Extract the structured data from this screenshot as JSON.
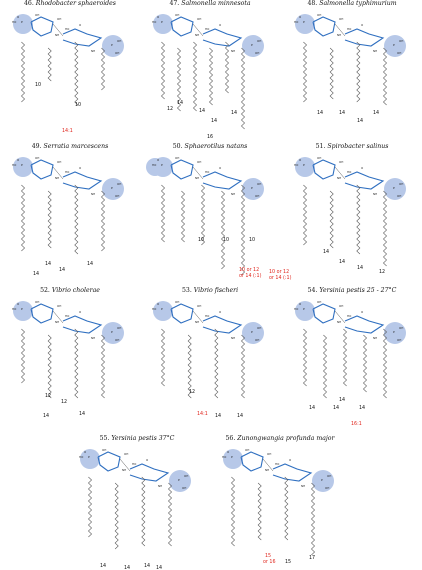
{
  "colors": {
    "circle": "#b7c8e8",
    "sugar": "#2f6fc0",
    "chain": "#555555",
    "red": "#e0261d"
  },
  "panels": [
    {
      "number": "46.",
      "species": "Rhodobacter sphaeroides",
      "labels": [
        {
          "text": "10",
          "red": false
        },
        {
          "text": "10",
          "red": false
        },
        {
          "text": "14:1",
          "red": true
        }
      ]
    },
    {
      "number": "47.",
      "species": "Salmonella minnesota",
      "labels": [
        {
          "text": "12",
          "red": false
        },
        {
          "text": "14",
          "red": false
        },
        {
          "text": "14",
          "red": false
        },
        {
          "text": "14",
          "red": false
        },
        {
          "text": "14",
          "red": false
        },
        {
          "text": "16",
          "red": false
        }
      ]
    },
    {
      "number": "48.",
      "species": "Salmonella typhimurium",
      "labels": [
        {
          "text": "14",
          "red": false
        },
        {
          "text": "14",
          "red": false
        },
        {
          "text": "14",
          "red": false
        },
        {
          "text": "14",
          "red": false
        }
      ]
    },
    {
      "number": "49.",
      "species": "Serratia marcescens",
      "labels": [
        {
          "text": "14",
          "red": false
        },
        {
          "text": "14",
          "red": false
        },
        {
          "text": "14",
          "red": false
        },
        {
          "text": "14",
          "red": false
        }
      ]
    },
    {
      "number": "50.",
      "species": "Sphaerotilus natans",
      "labels": [
        {
          "text": "10",
          "red": false
        },
        {
          "text": "10",
          "red": false
        },
        {
          "text": "10",
          "red": false
        },
        {
          "text": "10 or 12",
          "red": true
        },
        {
          "text": "or 14 (:1)",
          "red": true
        },
        {
          "text": "10 or 12",
          "red": true
        },
        {
          "text": "or 14 (:1)",
          "red": true
        }
      ]
    },
    {
      "number": "51.",
      "species": "Spirobacter salinus",
      "labels": [
        {
          "text": "14",
          "red": false
        },
        {
          "text": "14",
          "red": false
        },
        {
          "text": "14",
          "red": false
        },
        {
          "text": "12",
          "red": false
        }
      ]
    },
    {
      "number": "52.",
      "species": "Vibrio cholerae",
      "labels": [
        {
          "text": "12",
          "red": false
        },
        {
          "text": "12",
          "red": false
        },
        {
          "text": "14",
          "red": false
        },
        {
          "text": "14",
          "red": false
        }
      ]
    },
    {
      "number": "53.",
      "species": "Vibrio fischeri",
      "labels": [
        {
          "text": "12",
          "red": false
        },
        {
          "text": "14:1",
          "red": true
        },
        {
          "text": "14",
          "red": false
        },
        {
          "text": "14",
          "red": false
        }
      ]
    },
    {
      "number": "54.",
      "species": "Yersinia pestis 25 - 27°C",
      "labels": [
        {
          "text": "14",
          "red": false
        },
        {
          "text": "14",
          "red": false
        },
        {
          "text": "14",
          "red": false
        },
        {
          "text": "14",
          "red": false
        },
        {
          "text": "16:1",
          "red": true
        }
      ]
    },
    {
      "number": "55.",
      "species": "Yersinia pestis 37°C",
      "labels": [
        {
          "text": "14",
          "red": false
        },
        {
          "text": "14",
          "red": false
        },
        {
          "text": "14",
          "red": false
        },
        {
          "text": "14",
          "red": false
        }
      ]
    },
    {
      "number": "56.",
      "species": "Zunongwangia profunda major",
      "labels": [
        {
          "text": "15",
          "red": true
        },
        {
          "text": "or 16",
          "red": true
        },
        {
          "text": "15",
          "red": false
        },
        {
          "text": "17",
          "red": false
        },
        {
          "text": "17",
          "red": false
        }
      ]
    }
  ]
}
